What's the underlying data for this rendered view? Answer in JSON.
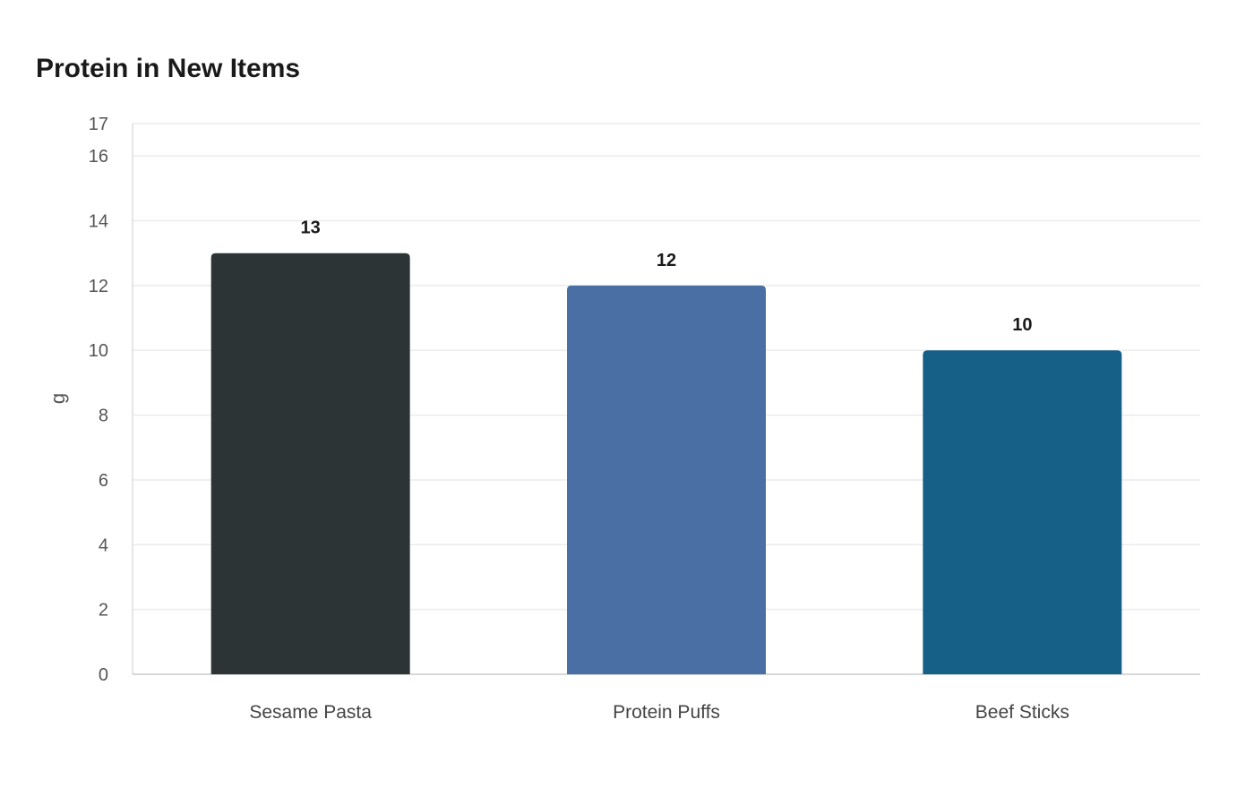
{
  "chart_data": {
    "type": "bar",
    "title": "Protein in New Items",
    "xlabel": "",
    "ylabel": "g",
    "categories": [
      "Sesame Pasta",
      "Protein Puffs",
      "Beef Sticks"
    ],
    "values": [
      13,
      12,
      10
    ],
    "colors": [
      "#2d3436",
      "#4a6fa5",
      "#166088"
    ],
    "ylim": [
      0,
      17
    ],
    "yticks": [
      0,
      2,
      4,
      6,
      8,
      10,
      12,
      14,
      16,
      17
    ],
    "grid": true,
    "legend": "none"
  }
}
